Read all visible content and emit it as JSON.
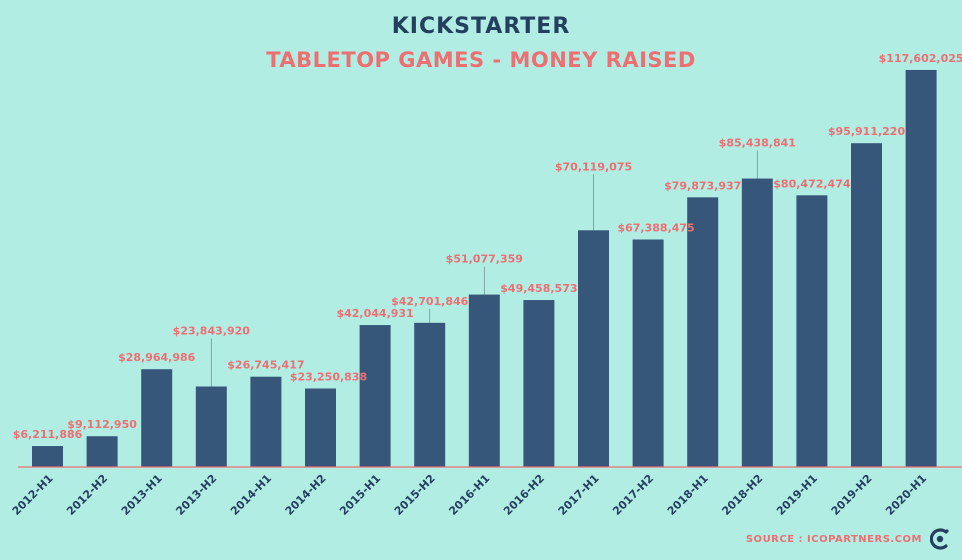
{
  "brand": {
    "logo_text": "KICKSTARTER"
  },
  "header": {
    "title": "TABLETOP GAMES - MONEY RAISED"
  },
  "footer": {
    "source": "SOURCE : ICOPARTNERS.COM",
    "icon": "icopartners-logo-icon"
  },
  "colors": {
    "bar": "#36577a",
    "label": "#ee6f72",
    "axis": "#ee6f72",
    "background": "#b2ede4",
    "leader": "#7a8d95"
  },
  "chart_data": {
    "type": "bar",
    "title": "TABLETOP GAMES - MONEY RAISED",
    "xlabel": "",
    "ylabel": "",
    "ylim": [
      0,
      125000000
    ],
    "grid": false,
    "categories": [
      "2012-H1",
      "2012-H2",
      "2013-H1",
      "2013-H2",
      "2014-H1",
      "2014-H2",
      "2015-H1",
      "2015-H2",
      "2016-H1",
      "2016-H2",
      "2017-H1",
      "2017-H2",
      "2018-H1",
      "2018-H2",
      "2019-H1",
      "2019-H2",
      "2020-H1"
    ],
    "values": [
      6211886,
      9112950,
      28964986,
      23843920,
      26745417,
      23250838,
      42044931,
      42701846,
      51077359,
      49458573,
      70119075,
      67388475,
      79873937,
      85438841,
      80472474,
      95911220,
      117602025
    ],
    "data_labels": [
      "$6,211,886",
      "$9,112,950",
      "$28,964,986",
      "$23,843,920",
      "$26,745,417",
      "$23,250,838",
      "$42,044,931",
      "$42,701,846",
      "$51,077,359",
      "$49,458,573",
      "$70,119,075",
      "$67,388,475",
      "$79,873,937",
      "$85,438,841",
      "$80,472,474",
      "$95,911,220",
      "$117,602,025"
    ]
  }
}
